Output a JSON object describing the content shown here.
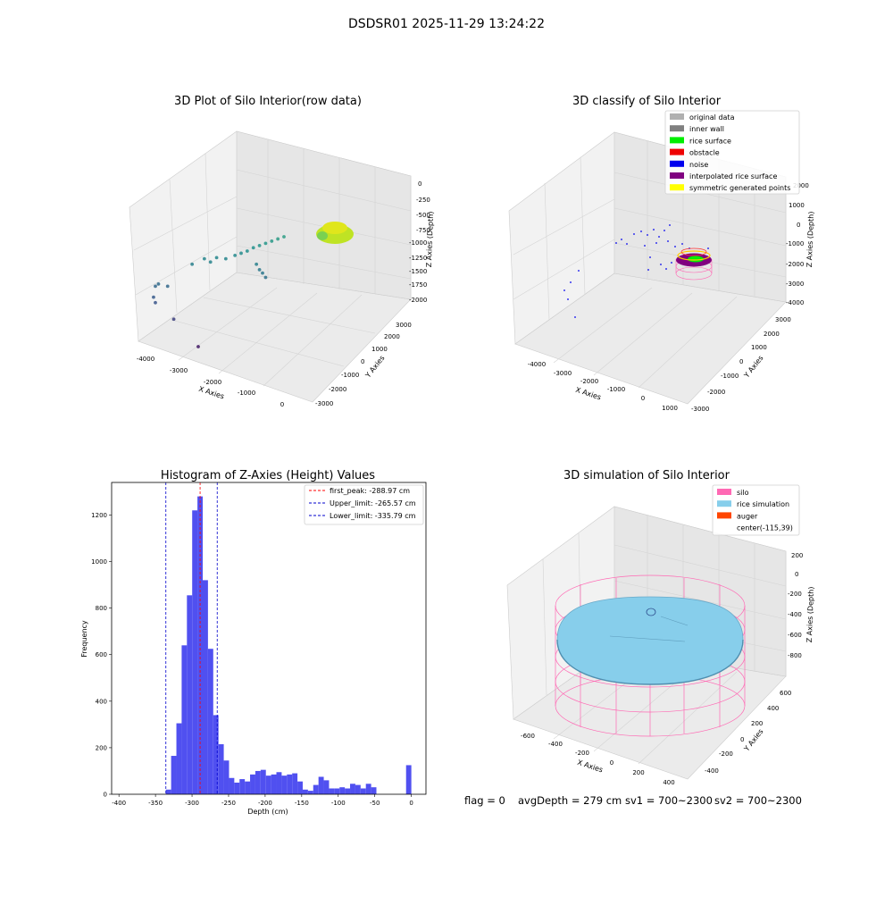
{
  "figure": {
    "suptitle": "DSDSR01 2025-11-29 13:24:22",
    "status": {
      "flag": "flag = 0",
      "avg_depth": "avgDepth = 279 cm",
      "sv1": "sv1 = 700~2300",
      "sv2": "sv2 = 700~2300"
    }
  },
  "colors": {
    "histogram_bar": "#5050f0",
    "first_peak": "#ff0000",
    "limits": "#0000cc",
    "original_data": "#b0b0b0",
    "inner_wall": "#808080",
    "rice_surface": "#00ee00",
    "obstacle": "#ee0000",
    "noise": "#0000ee",
    "interpolated_rice_surface": "#800080",
    "symmetric_generated_points": "#ffff00",
    "silo": "#ff69b4",
    "rice_simulation": "#87ceeb",
    "auger": "#ff4500"
  },
  "chart_data": [
    {
      "type": "scatter",
      "title": "3D Plot of Silo Interior(row data)",
      "xlabel": "X Axies",
      "ylabel": "Y Axies",
      "zlabel": "Z Axies (Depth)",
      "x_ticks": [
        "-4000",
        "-3000",
        "-2000",
        "-1000",
        "0"
      ],
      "y_ticks": [
        "3000",
        "2000",
        "1000",
        "0",
        "-1000",
        "-2000",
        "-3000"
      ],
      "z_ticks": [
        "0",
        "-250",
        "-500",
        "-750",
        "-1000",
        "-1250",
        "-1500",
        "-1750",
        "-2000"
      ],
      "xlim": [
        -4300,
        300
      ],
      "zlim": [
        -2100,
        100
      ],
      "colormap": "viridis by depth",
      "points": [
        {
          "x": -2300,
          "z": -1950
        },
        {
          "x": -2700,
          "z": -1700
        },
        {
          "x": -3000,
          "z": -1550
        },
        {
          "x": -3030,
          "z": -1500
        },
        {
          "x": -3000,
          "z": -1400
        },
        {
          "x": -2800,
          "z": -1400
        },
        {
          "x": -2950,
          "z": -1380
        },
        {
          "x": -2400,
          "z": -1200
        },
        {
          "x": -2200,
          "z": -1150
        },
        {
          "x": -2100,
          "z": -1180
        },
        {
          "x": -2000,
          "z": -1140
        },
        {
          "x": -1850,
          "z": -1150
        },
        {
          "x": -1700,
          "z": -1120
        },
        {
          "x": -1600,
          "z": -1100
        },
        {
          "x": -1500,
          "z": -1080
        },
        {
          "x": -1400,
          "z": -1050
        },
        {
          "x": -1300,
          "z": -1030
        },
        {
          "x": -1200,
          "z": -1010
        },
        {
          "x": -1100,
          "z": -990
        },
        {
          "x": -1000,
          "z": -970
        },
        {
          "x": -900,
          "z": -950
        },
        {
          "x": -1350,
          "z": -1200
        },
        {
          "x": -1300,
          "z": -1250
        },
        {
          "x": -1250,
          "z": -1280
        },
        {
          "x": -1200,
          "z": -1320
        }
      ]
    },
    {
      "type": "scatter",
      "title": "3D classify of Silo Interior",
      "xlabel": "X Axies",
      "ylabel": "Y Axies",
      "zlabel": "Z Axies (Depth)",
      "x_ticks": [
        "-4000",
        "-3000",
        "-2000",
        "-1000",
        "0",
        "1000"
      ],
      "y_ticks": [
        "3000",
        "2000",
        "1000",
        "0",
        "-1000",
        "-2000",
        "-3000"
      ],
      "z_ticks": [
        "2000",
        "1000",
        "0",
        "-1000",
        "-2000",
        "-3000",
        "-4000"
      ],
      "legend_position": "upper right",
      "legend": [
        {
          "label": "original data",
          "color_key": "original_data"
        },
        {
          "label": "inner wall",
          "color_key": "inner_wall"
        },
        {
          "label": "rice surface",
          "color_key": "rice_surface"
        },
        {
          "label": "obstacle",
          "color_key": "obstacle"
        },
        {
          "label": "noise",
          "color_key": "noise"
        },
        {
          "label": "interpolated rice surface",
          "color_key": "interpolated_rice_surface"
        },
        {
          "label": "symmetric generated points",
          "color_key": "symmetric_generated_points"
        }
      ]
    },
    {
      "type": "bar",
      "title": "Histogram of Z-Axies (Height) Values",
      "xlabel": "Depth (cm)",
      "ylabel": "Frequency",
      "xlim": [
        -410,
        20
      ],
      "ylim": [
        0,
        1340
      ],
      "x_ticks": [
        -400,
        -350,
        -300,
        -250,
        -200,
        -150,
        -100,
        -50,
        0
      ],
      "y_ticks": [
        0,
        200,
        400,
        600,
        800,
        1000,
        1200
      ],
      "bin_width": 7.2,
      "bins_start": [
        -335.8,
        -328.6,
        -321.4,
        -314.2,
        -307.0,
        -299.8,
        -292.6,
        -285.4,
        -278.2,
        -271.0,
        -263.8,
        -256.6,
        -249.4,
        -242.2,
        -235.0,
        -227.8,
        -220.6,
        -213.4,
        -206.2,
        -199.0,
        -191.8,
        -184.6,
        -177.4,
        -170.2,
        -163.0,
        -155.8,
        -148.6,
        -141.4,
        -134.2,
        -127.0,
        -119.8,
        -112.6,
        -105.4,
        -98.2,
        -91.0,
        -83.8,
        -76.6,
        -69.4,
        -62.2,
        -55.0,
        -47.8,
        -40.6,
        -7.2
      ],
      "values": [
        20,
        165,
        305,
        640,
        855,
        1220,
        1280,
        920,
        625,
        340,
        215,
        145,
        70,
        50,
        65,
        55,
        85,
        100,
        105,
        80,
        85,
        95,
        80,
        85,
        90,
        55,
        20,
        15,
        40,
        75,
        60,
        25,
        25,
        30,
        25,
        45,
        40,
        25,
        45,
        30,
        0,
        0,
        125
      ],
      "reference_lines": [
        {
          "label": "first_peak: -288.97 cm",
          "x": -288.97,
          "color_key": "first_peak"
        },
        {
          "label": "Upper_limit: -265.57 cm",
          "x": -265.57,
          "color_key": "limits"
        },
        {
          "label": "Lower_limit: -335.79 cm",
          "x": -335.79,
          "color_key": "limits"
        }
      ],
      "legend_position": "upper right"
    },
    {
      "type": "scatter",
      "title": "3D simulation of Silo Interior",
      "xlabel": "X Axies",
      "ylabel": "Y Axies",
      "zlabel": "Z Axies (Depth)",
      "x_ticks": [
        "-600",
        "-400",
        "-200",
        "0",
        "200",
        "400"
      ],
      "y_ticks": [
        "600",
        "400",
        "200",
        "0",
        "-200",
        "-400"
      ],
      "z_ticks": [
        "200",
        "0",
        "-200",
        "-400",
        "-600",
        "-800"
      ],
      "legend_position": "upper right",
      "legend": [
        {
          "label": "silo",
          "color_key": "silo"
        },
        {
          "label": "rice simulation",
          "color_key": "rice_simulation"
        },
        {
          "label": "auger",
          "color_key": "auger"
        },
        {
          "label": "center(-115,39)",
          "color_key": ""
        }
      ]
    }
  ]
}
